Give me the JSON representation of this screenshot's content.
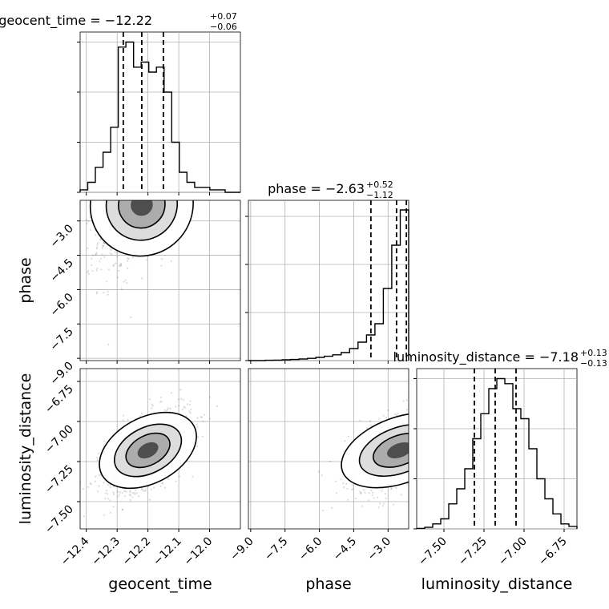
{
  "chart_data": {
    "type": "corner",
    "parameters": [
      {
        "name": "geocent_time",
        "median": "−12.22",
        "plus": "+0.07",
        "minus": "−0.06",
        "range": [
          -12.42,
          -11.9
        ],
        "ticks": [
          -12.4,
          -12.3,
          -12.2,
          -12.1,
          -12.0
        ],
        "tick_labels": [
          "−12.4",
          "−12.3",
          "−12.2",
          "−12.1",
          "−12.0"
        ],
        "quantiles": [
          -12.28,
          -12.22,
          -12.15
        ]
      },
      {
        "name": "phase",
        "median": "−2.63",
        "plus": "+0.52",
        "minus": "−1.12",
        "range": [
          -9.1,
          -2.1
        ],
        "ticks": [
          -9.0,
          -7.5,
          -6.0,
          -4.5,
          -3.0
        ],
        "tick_labels": [
          "−9.0",
          "−7.5",
          "−6.0",
          "−4.5",
          "−3.0"
        ],
        "quantiles": [
          -3.75,
          -2.63,
          -2.2
        ]
      },
      {
        "name": "luminosity_distance",
        "median": "−7.18",
        "plus": "+0.13",
        "minus": "−0.13",
        "range": [
          -7.67,
          -6.67
        ],
        "ticks": [
          -7.5,
          -7.25,
          -7.0,
          -6.75
        ],
        "tick_labels": [
          "−7.50",
          "−7.25",
          "−7.00",
          "−6.75"
        ],
        "quantiles": [
          -7.31,
          -7.18,
          -7.05
        ]
      }
    ],
    "histograms": {
      "geocent_time": [
        0.5,
        2,
        5,
        8,
        13,
        29,
        30,
        25,
        26,
        24,
        25,
        20,
        10,
        4,
        2,
        1,
        1,
        0.5,
        0.5,
        0,
        0
      ],
      "phase": [
        0,
        0,
        0.02,
        0.03,
        0.05,
        0.07,
        0.1,
        0.14,
        0.2,
        0.27,
        0.36,
        0.5,
        0.75,
        1.15,
        1.6,
        2.3,
        4.5,
        7.2,
        9.4
      ],
      "luminosity_distance": [
        0.1,
        0.3,
        1,
        2,
        5,
        8,
        12,
        18,
        23,
        28,
        30,
        29,
        24,
        22,
        16,
        10,
        6,
        3,
        1,
        0.5
      ]
    },
    "hist_y_ticks": {
      "geocent_time": [
        0,
        10,
        20,
        30
      ],
      "phase": [
        0,
        3,
        6,
        9
      ],
      "luminosity_distance": [
        0,
        10,
        20,
        30
      ]
    },
    "grid": true
  },
  "text": {
    "title_geocent": "geocent_time = −12.22",
    "title_geocent_sup": "+0.07",
    "title_geocent_sub": "−0.06",
    "title_phase": "phase = −2.63",
    "title_phase_sup": "+0.52",
    "title_phase_sub": "−1.12",
    "title_lumdist": "luminosity_distance = −7.18",
    "title_lumdist_sup": "+0.13",
    "title_lumdist_sub": "−0.13",
    "xlabel_1": "geocent_time",
    "xlabel_2": "phase",
    "xlabel_3": "luminosity_distance",
    "ylabel_2": "phase",
    "ylabel_3": "luminosity_distance"
  }
}
